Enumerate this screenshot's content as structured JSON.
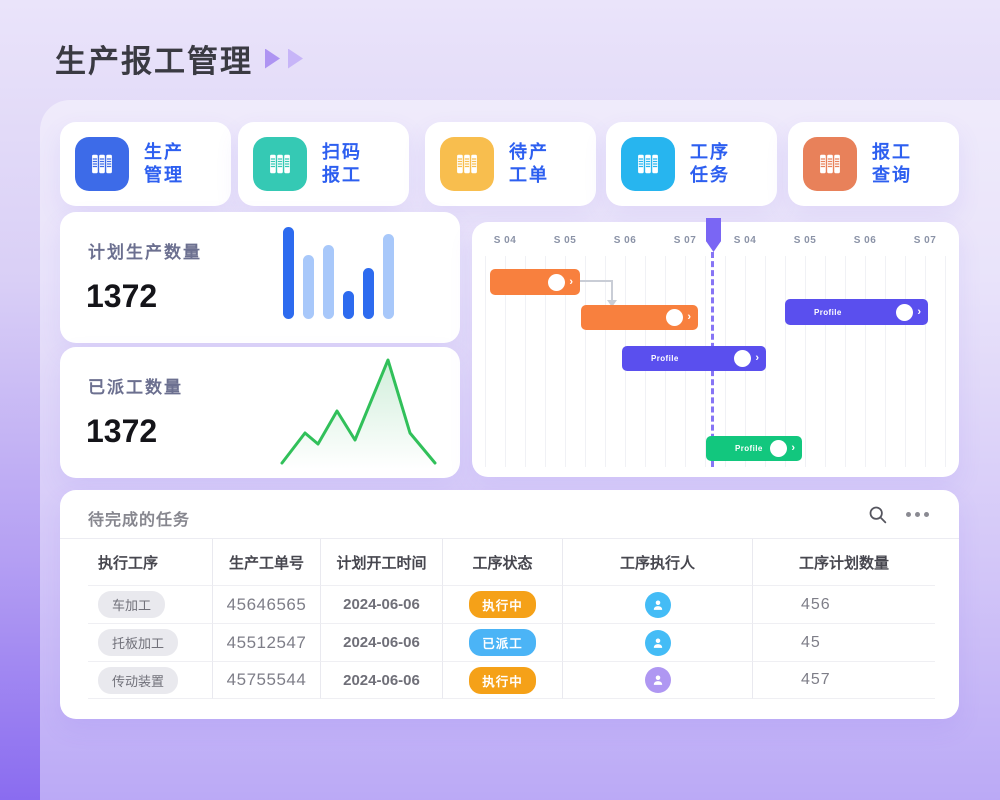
{
  "page": {
    "title": "生产报工管理"
  },
  "nav": {
    "items": [
      {
        "label": "生产\n管理",
        "icon": "books-icon",
        "color": "#3D6BE8"
      },
      {
        "label": "扫码\n报工",
        "icon": "books-icon",
        "color": "#35C9B4"
      },
      {
        "label": "待产\n工单",
        "icon": "books-icon",
        "color": "#F8BE4E"
      },
      {
        "label": "工序\n任务",
        "icon": "books-icon",
        "color": "#27B5EF"
      },
      {
        "label": "报工\n查询",
        "icon": "books-icon",
        "color": "#E8815A"
      }
    ]
  },
  "stats": [
    {
      "title": "计划生产数量",
      "value": "1372",
      "chart": {
        "type": "bar",
        "values": [
          92,
          64,
          74,
          28,
          51,
          85
        ],
        "colors": [
          "#2D6BEF",
          "#A8C8FA",
          "#A8C8FA",
          "#2D6BEF",
          "#2D6BEF",
          "#A8C8FA"
        ]
      }
    },
    {
      "title": "已派工数量",
      "value": "1372",
      "chart": {
        "type": "line",
        "color": "#31C05A",
        "points": [
          [
            3,
            112
          ],
          [
            26,
            82
          ],
          [
            39,
            93
          ],
          [
            58,
            60
          ],
          [
            76,
            89
          ],
          [
            109,
            9
          ],
          [
            131,
            82
          ],
          [
            156,
            112
          ]
        ]
      }
    }
  ],
  "gantt": {
    "timeline": [
      "S 04",
      "S 05",
      "S 06",
      "S 07",
      "S 04",
      "S 05",
      "S 06",
      "S 07"
    ],
    "marker_color": "#7A66F4",
    "bars": [
      {
        "label": "",
        "color": "#F8803E"
      },
      {
        "label": "",
        "color": "#F8803E"
      },
      {
        "label": "Profile",
        "color": "#5A4FEE"
      },
      {
        "label": "Profile",
        "color": "#5A4FEE"
      },
      {
        "label": "Profile",
        "color": "#12C77E"
      }
    ]
  },
  "tasks": {
    "title": "待完成的任务",
    "columns": [
      "执行工序",
      "生产工单号",
      "计划开工时间",
      "工序状态",
      "工序执行人",
      "工序计划数量"
    ],
    "rows": [
      {
        "process": "车加工",
        "order_no": "45646565",
        "start_date": "2024-06-06",
        "status": "执行中",
        "status_color": "#F5A118",
        "executor_icon": "user-avatar",
        "avatar_color": "#44BCF6",
        "qty": "456"
      },
      {
        "process": "托板加工",
        "order_no": "45512547",
        "start_date": "2024-06-06",
        "status": "已派工",
        "status_color": "#4BB4F6",
        "executor_icon": "user-avatar",
        "avatar_color": "#44BCF6",
        "qty": "45"
      },
      {
        "process": "传动装置",
        "order_no": "45755544",
        "start_date": "2024-06-06",
        "status": "执行中",
        "status_color": "#F5A118",
        "executor_icon": "user-avatar",
        "avatar_color": "#AF97F2",
        "qty": "457"
      }
    ]
  }
}
